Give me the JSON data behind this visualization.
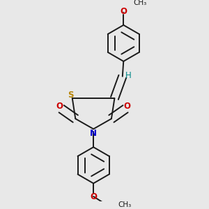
{
  "bg_color": "#e8e8e8",
  "bond_color": "#1a1a1a",
  "S_color": "#b8860b",
  "N_color": "#0000cc",
  "O_color": "#cc0000",
  "H_color": "#008888",
  "lw": 1.4,
  "dbo": 0.018,
  "fig_w": 3.0,
  "fig_h": 3.0,
  "dpi": 100,
  "xlim": [
    0.08,
    0.92
  ],
  "ylim": [
    0.04,
    0.98
  ]
}
